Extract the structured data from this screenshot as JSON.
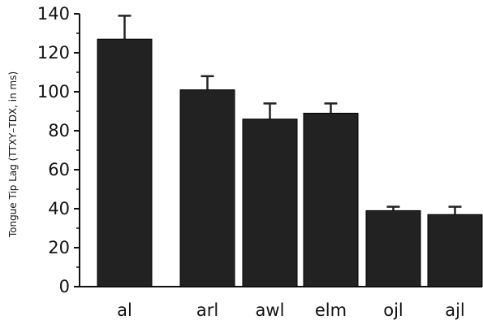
{
  "chart_data": {
    "type": "bar",
    "title": "",
    "xlabel": "",
    "ylabel": "Tongue Tip Lag (TTXY–TDX, in ms)",
    "ylim": [
      0,
      140
    ],
    "yticks": [
      0,
      20,
      40,
      60,
      80,
      100,
      120,
      140
    ],
    "categories": [
      "al",
      "arl",
      "awl",
      "elm",
      "ojl",
      "ajl"
    ],
    "values": [
      127,
      101,
      86,
      89,
      39,
      37
    ],
    "error_plus": [
      12,
      7,
      8,
      5,
      2,
      4
    ],
    "grid": false,
    "legend": "none",
    "bar_color": "#222222"
  }
}
